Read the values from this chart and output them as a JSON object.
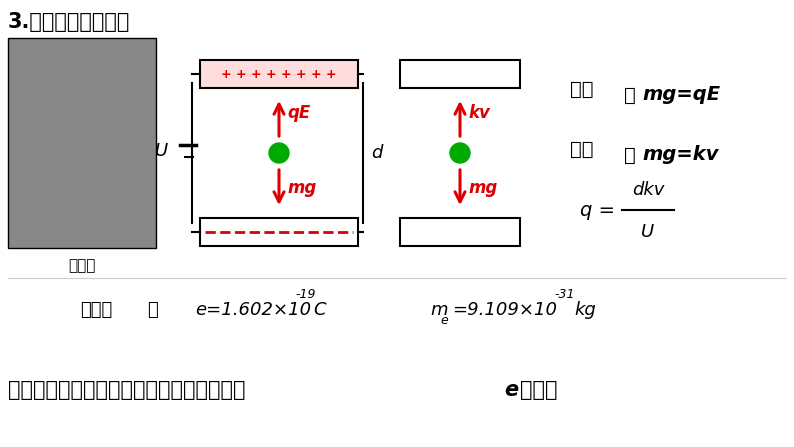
{
  "bg_color": "#ffffff",
  "title": "3.密立根测电子电量",
  "photo_label": "密立根",
  "U_label": "U",
  "d_label": "d",
  "plus_text": "+ + + + + + + +",
  "qE_label": "qE",
  "mg_label1": "mg",
  "kv_label": "kv",
  "mg_label2": "mg",
  "jingzhi_cn": "静止",
  "jingzhi_colon": "：",
  "jingzhi_eq": "mg=qE",
  "junsu_cn": "匀速",
  "junsu_colon": "：",
  "junsu_eq": "mg=kv",
  "q_left": "q =",
  "q_num": "dkv",
  "q_den": "U",
  "yuandianhe_cn": "元电荷",
  "yuandianhe_colon": "：",
  "e_formula": "e=1.602×10",
  "e_exp": "-19",
  "e_unit": "C",
  "m_letter": "m",
  "m_sub": "e",
  "m_formula": "=9.109×10",
  "m_exp": "-31",
  "m_unit": "kg",
  "bottom_main": "电荷是量子化的，任何带电体的电荷只能是",
  "bottom_e": "e",
  "bottom_end": "的整倍",
  "arrow_color": "#dd0000",
  "dashes_color": "#dd0000",
  "plus_color": "#dd0000",
  "plate_color": "#000000",
  "plate_fill": "#ffffff",
  "top_plate_fill": "#ffe0e0"
}
